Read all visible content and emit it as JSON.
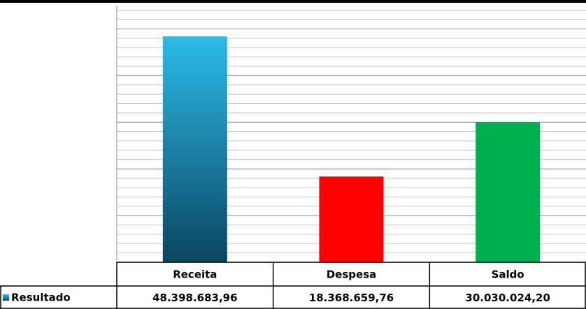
{
  "chart_data": {
    "type": "bar",
    "categories": [
      "Receita",
      "Despesa",
      "Saldo"
    ],
    "series": [
      {
        "name": "Resultado",
        "colors": [
          [
            "#2cbbe8",
            "#0b4560"
          ],
          "#ff0000",
          "#00b050"
        ],
        "values": [
          48398683.96,
          18368659.76,
          30030024.2
        ],
        "value_labels": [
          "48.398.683,96",
          "18.368.659,76",
          "30.030.024,20"
        ]
      }
    ],
    "ylim": [
      0,
      55000000
    ],
    "yticks": [
      0,
      10000000,
      20000000,
      30000000,
      40000000,
      50000000
    ],
    "minor_yticks": [
      2000000,
      4000000,
      6000000,
      8000000,
      12000000,
      14000000,
      16000000,
      18000000,
      22000000,
      24000000,
      26000000,
      28000000,
      32000000,
      34000000,
      36000000,
      38000000,
      42000000,
      44000000,
      46000000,
      48000000,
      52000000,
      54000000
    ],
    "grid": true
  }
}
